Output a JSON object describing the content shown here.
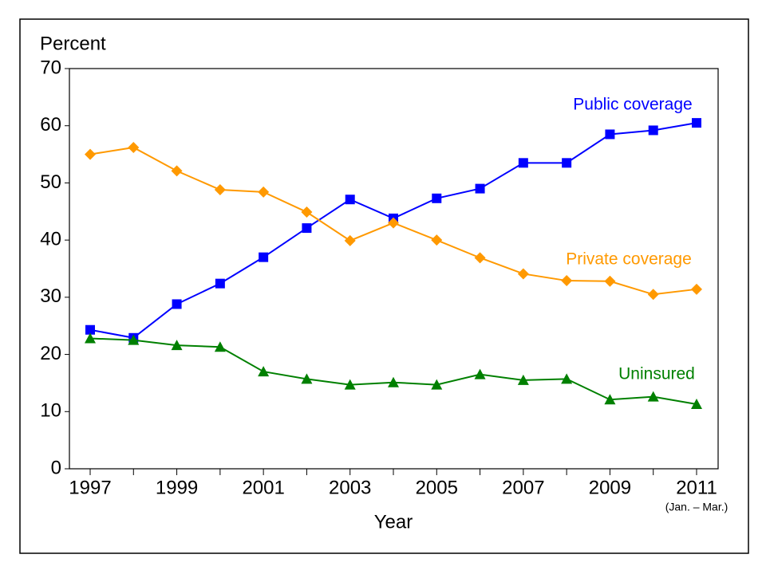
{
  "chart_data": {
    "type": "line",
    "y_label": "Percent",
    "x_label": "Year",
    "annotation": "(Jan. – Mar.)",
    "categories": [
      "1997",
      null,
      "1999",
      null,
      "2001",
      null,
      "2003",
      null,
      "2005",
      null,
      "2007",
      null,
      "2009",
      null,
      "2011"
    ],
    "series": [
      {
        "name": "Public coverage",
        "color": "#0000ff",
        "marker": "square",
        "values": [
          24.3,
          22.9,
          28.8,
          32.4,
          37.0,
          42.1,
          47.1,
          43.8,
          47.3,
          49.0,
          53.5,
          53.5,
          58.5,
          59.2,
          60.5
        ]
      },
      {
        "name": "Private coverage",
        "color": "#ff9900",
        "marker": "diamond",
        "values": [
          55.0,
          56.2,
          52.1,
          48.8,
          48.4,
          44.9,
          39.9,
          43.0,
          40.0,
          36.9,
          34.1,
          32.9,
          32.8,
          30.5,
          31.4
        ]
      },
      {
        "name": "Uninsured",
        "color": "#008000",
        "marker": "triangle",
        "values": [
          22.8,
          22.5,
          21.6,
          21.3,
          17.0,
          15.7,
          14.7,
          15.1,
          14.7,
          16.5,
          15.5,
          15.7,
          12.1,
          12.6,
          11.3
        ]
      }
    ],
    "ylim": [
      0,
      70
    ],
    "yticks": [
      0,
      10,
      20,
      30,
      40,
      50,
      60,
      70
    ],
    "grid": false
  }
}
